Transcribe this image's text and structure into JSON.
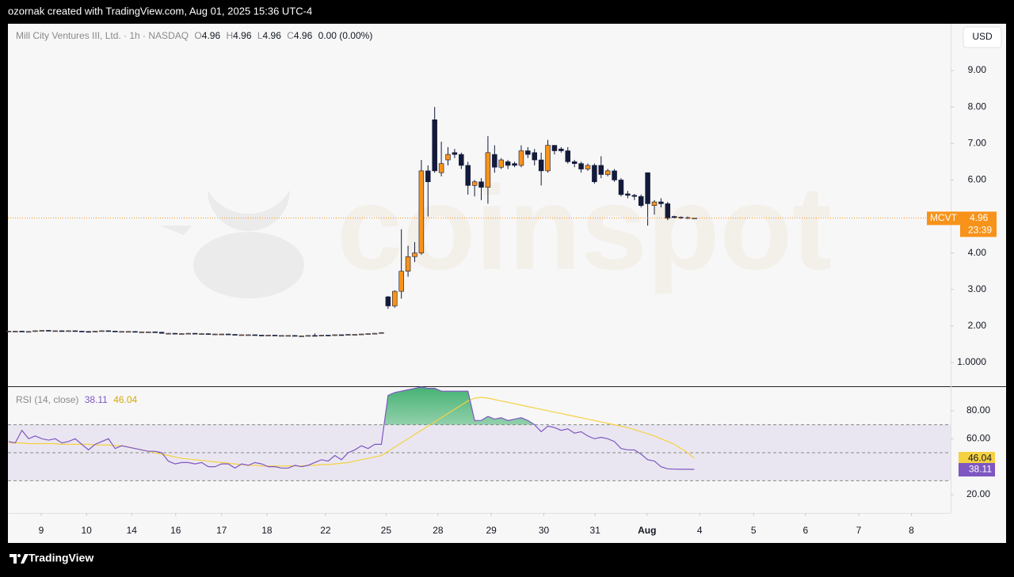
{
  "header": {
    "credit": "ozornak created with TradingView.com, Aug 01, 2025 15:36 UTC-4"
  },
  "legend": {
    "symbol": "Mill City Ventures III, Ltd. · 1h · NASDAQ",
    "o": "O",
    "h": "H",
    "l": "L",
    "c": "C",
    "change": "0.00 (0.00%)"
  },
  "currency": "USD",
  "price_tag": {
    "ticker": "MCVT",
    "countdown": "23:39"
  },
  "rsi_legend": {
    "name": "RSI (14, close)"
  },
  "watermark": "coinspot",
  "footer": {
    "brand": "TradingView"
  },
  "chart_data": [
    {
      "type": "candlestick",
      "up_color": "#f7931a",
      "down_color": "#131a3a",
      "last_line_color": "#f7931a",
      "x": [
        0,
        1,
        2,
        3,
        4,
        5,
        6,
        7,
        8,
        9,
        10,
        11,
        12,
        13,
        14,
        15,
        16,
        17,
        18,
        19,
        20,
        21,
        22,
        23,
        24,
        25,
        26,
        27,
        28,
        29,
        30,
        31,
        32,
        33,
        34,
        35,
        36,
        37,
        38,
        39,
        40,
        41,
        42,
        43,
        44,
        45,
        46,
        47,
        48,
        49,
        50,
        51,
        52,
        53,
        54,
        55,
        56,
        57,
        58,
        59,
        60,
        61,
        62,
        63,
        64,
        65,
        66,
        67,
        68,
        69,
        70,
        71,
        72,
        73,
        74,
        75,
        76,
        77,
        78,
        79,
        80,
        81,
        82,
        83,
        84,
        85,
        86,
        87,
        88,
        89,
        90,
        91,
        92,
        93,
        94,
        95,
        96,
        97,
        98,
        99,
        100,
        101,
        102,
        103
      ],
      "open": [
        1.86,
        1.86,
        1.86,
        1.85,
        1.85,
        1.87,
        1.88,
        1.87,
        1.87,
        1.86,
        1.87,
        1.86,
        1.85,
        1.84,
        1.86,
        1.87,
        1.86,
        1.85,
        1.85,
        1.85,
        1.84,
        1.84,
        1.84,
        1.83,
        1.8,
        1.8,
        1.79,
        1.79,
        1.8,
        1.79,
        1.79,
        1.78,
        1.78,
        1.78,
        1.77,
        1.76,
        1.76,
        1.76,
        1.75,
        1.74,
        1.75,
        1.74,
        1.74,
        1.74,
        1.73,
        1.73,
        1.74,
        1.73,
        1.75,
        1.74,
        1.76,
        1.75,
        1.77,
        1.77,
        1.78,
        1.79,
        1.8,
        2.8,
        2.55,
        2.95,
        3.5,
        3.9,
        4.0,
        6.25,
        7.65,
        6.2,
        6.55,
        6.75,
        6.7,
        6.4,
        5.85,
        5.95,
        5.8,
        6.7,
        6.35,
        6.5,
        6.45,
        6.4,
        6.8,
        6.75,
        6.55,
        6.25,
        6.95,
        6.85,
        6.8,
        6.5,
        6.45,
        6.3,
        6.4,
        6.4,
        6.15,
        6.25,
        6.0,
        5.62,
        5.58,
        5.55,
        6.2,
        5.3,
        5.4,
        5.35,
        5.0,
        4.98,
        4.95,
        4.96
      ],
      "high": [
        1.87,
        1.87,
        1.87,
        1.86,
        1.88,
        1.89,
        1.89,
        1.88,
        1.88,
        1.88,
        1.88,
        1.87,
        1.86,
        1.87,
        1.88,
        1.88,
        1.87,
        1.86,
        1.86,
        1.86,
        1.85,
        1.85,
        1.85,
        1.84,
        1.81,
        1.81,
        1.8,
        1.81,
        1.81,
        1.8,
        1.8,
        1.79,
        1.79,
        1.79,
        1.78,
        1.77,
        1.77,
        1.77,
        1.76,
        1.76,
        1.76,
        1.75,
        1.75,
        1.75,
        1.74,
        1.75,
        1.8,
        1.76,
        1.76,
        1.77,
        1.77,
        1.78,
        1.78,
        1.79,
        1.8,
        1.81,
        1.83,
        2.82,
        2.98,
        4.65,
        4.2,
        4.3,
        6.55,
        6.4,
        8.0,
        7.05,
        6.9,
        6.85,
        6.75,
        6.5,
        6.0,
        6.05,
        7.2,
        6.95,
        6.6,
        6.55,
        6.5,
        6.95,
        6.9,
        6.85,
        6.75,
        7.1,
        6.95,
        6.9,
        6.9,
        6.55,
        6.5,
        6.45,
        6.45,
        6.65,
        6.3,
        6.3,
        6.05,
        5.7,
        5.62,
        5.6,
        6.2,
        5.45,
        5.5,
        5.4,
        5.02,
        5.0,
        5.0,
        4.96
      ],
      "low": [
        1.85,
        1.85,
        1.84,
        1.84,
        1.84,
        1.86,
        1.86,
        1.86,
        1.85,
        1.85,
        1.85,
        1.84,
        1.83,
        1.83,
        1.85,
        1.85,
        1.84,
        1.84,
        1.84,
        1.83,
        1.83,
        1.83,
        1.82,
        1.79,
        1.79,
        1.78,
        1.78,
        1.78,
        1.78,
        1.78,
        1.77,
        1.77,
        1.77,
        1.76,
        1.75,
        1.75,
        1.75,
        1.74,
        1.73,
        1.73,
        1.73,
        1.73,
        1.73,
        1.72,
        1.72,
        1.72,
        1.72,
        1.72,
        1.73,
        1.73,
        1.74,
        1.74,
        1.76,
        1.76,
        1.77,
        1.78,
        1.79,
        2.47,
        2.5,
        2.75,
        3.35,
        3.75,
        3.95,
        5.0,
        6.2,
        6.1,
        6.4,
        6.6,
        6.3,
        5.6,
        5.55,
        5.45,
        5.35,
        6.2,
        6.3,
        6.3,
        6.35,
        6.35,
        6.6,
        6.4,
        5.85,
        6.2,
        6.7,
        6.75,
        6.45,
        6.35,
        6.2,
        6.25,
        5.9,
        6.05,
        6.1,
        5.95,
        5.55,
        5.5,
        5.45,
        5.25,
        4.75,
        5.05,
        5.25,
        4.9,
        4.95,
        4.93,
        4.93,
        4.96
      ],
      "close": [
        1.86,
        1.86,
        1.85,
        1.85,
        1.87,
        1.88,
        1.87,
        1.87,
        1.86,
        1.87,
        1.86,
        1.85,
        1.84,
        1.86,
        1.87,
        1.86,
        1.85,
        1.85,
        1.85,
        1.84,
        1.84,
        1.84,
        1.83,
        1.8,
        1.8,
        1.79,
        1.79,
        1.8,
        1.79,
        1.79,
        1.78,
        1.78,
        1.78,
        1.77,
        1.76,
        1.76,
        1.76,
        1.75,
        1.74,
        1.75,
        1.74,
        1.74,
        1.74,
        1.73,
        1.73,
        1.74,
        1.73,
        1.75,
        1.74,
        1.76,
        1.75,
        1.77,
        1.77,
        1.78,
        1.79,
        1.8,
        1.82,
        2.55,
        2.95,
        3.5,
        3.9,
        4.0,
        6.25,
        5.95,
        6.25,
        6.45,
        6.7,
        6.7,
        6.4,
        5.85,
        5.95,
        5.8,
        6.75,
        6.35,
        6.55,
        6.4,
        6.4,
        6.8,
        6.7,
        6.55,
        6.25,
        6.95,
        6.8,
        6.8,
        6.5,
        6.45,
        6.3,
        6.4,
        5.95,
        6.15,
        6.25,
        6.0,
        5.6,
        5.58,
        5.55,
        5.3,
        5.35,
        5.4,
        5.35,
        4.95,
        4.97,
        4.96,
        4.97,
        4.96
      ],
      "xlim": [
        -0.1,
        141.5
      ],
      "ylim": [
        0.35,
        10.28
      ],
      "yticks": [
        {
          "value": 1,
          "label": "1.0000"
        },
        {
          "value": 2,
          "label": "2.00"
        },
        {
          "value": 3,
          "label": "3.00"
        },
        {
          "value": 4,
          "label": "4.00"
        },
        {
          "value": 6,
          "label": "6.00"
        },
        {
          "value": 7,
          "label": "7.00"
        },
        {
          "value": 8,
          "label": "8.00"
        },
        {
          "value": 9,
          "label": "9.00"
        }
      ]
    },
    {
      "type": "line",
      "x": [
        0,
        1,
        2,
        3,
        4,
        5,
        6,
        7,
        8,
        9,
        10,
        11,
        12,
        13,
        14,
        15,
        16,
        17,
        18,
        19,
        20,
        21,
        22,
        23,
        24,
        25,
        26,
        27,
        28,
        29,
        30,
        31,
        32,
        33,
        34,
        35,
        36,
        37,
        38,
        39,
        40,
        41,
        42,
        43,
        44,
        45,
        46,
        47,
        48,
        49,
        50,
        51,
        52,
        53,
        54,
        55,
        56,
        57,
        58,
        59,
        60,
        61,
        62,
        63,
        64,
        65,
        66,
        67,
        68,
        69,
        70,
        71,
        72,
        73,
        74,
        75,
        76,
        77,
        78,
        79,
        80,
        81,
        82,
        83,
        84,
        85,
        86,
        87,
        88,
        89,
        90,
        91,
        92,
        93,
        94,
        95,
        96,
        97,
        98,
        99,
        100,
        101,
        102,
        103
      ],
      "series": [
        {
          "name": "RSI",
          "color": "#7e57c2",
          "values": [
            58,
            57,
            66,
            60,
            62,
            60,
            59,
            60,
            57,
            58,
            60,
            56,
            52,
            56,
            58,
            60,
            53,
            55,
            54,
            53,
            52,
            51,
            51,
            50,
            44,
            42,
            43,
            43,
            42,
            43,
            40,
            40,
            42,
            42,
            39,
            42,
            41,
            43,
            42,
            40,
            40,
            39,
            39,
            41,
            40,
            41,
            43,
            45,
            44,
            48,
            45,
            50,
            52,
            55,
            53,
            56,
            56,
            91,
            93,
            94,
            95,
            96,
            97,
            96,
            96,
            94,
            94,
            94,
            94,
            94,
            73,
            73,
            76,
            74,
            75,
            73,
            74,
            75,
            73,
            70,
            65,
            69,
            68,
            66,
            67,
            64,
            65,
            62,
            60,
            61,
            60,
            58,
            53,
            52,
            52,
            49,
            45,
            44,
            40,
            38.5,
            38.3,
            38.2,
            38.2,
            38.11
          ]
        },
        {
          "name": "RSI-based MA",
          "color": "#f5d142",
          "values": [
            57,
            57,
            57,
            56.5,
            56.5,
            56.5,
            56.5,
            56.5,
            56,
            56,
            56,
            56,
            56,
            55.5,
            55.5,
            55.5,
            55,
            55,
            54,
            53,
            52,
            51,
            50,
            49,
            48,
            47,
            46,
            45.5,
            45,
            44.5,
            44,
            43.5,
            43,
            42.5,
            42,
            41.5,
            41,
            41,
            40.5,
            40.5,
            40.5,
            40.5,
            40.5,
            40.5,
            40.5,
            41,
            41,
            41.5,
            41.5,
            42,
            42.5,
            43,
            44,
            45,
            46,
            47,
            48,
            51,
            54,
            57,
            60,
            63,
            66,
            69,
            72,
            75,
            78,
            81,
            84,
            87,
            89,
            89.5,
            89,
            88,
            87,
            86,
            85,
            84,
            83,
            82,
            81,
            80,
            79,
            78,
            77,
            76,
            75,
            74,
            73,
            72,
            71,
            70,
            69,
            68,
            66.5,
            65,
            63.5,
            62,
            60,
            58,
            56,
            53,
            50,
            46.04
          ]
        }
      ],
      "levels": [
        30,
        50,
        70
      ],
      "band_color": "#7e57c2",
      "overbought_color": "#26a65b",
      "xlim": [
        -0.1,
        141.5
      ],
      "ylim": [
        7,
        97.5
      ],
      "yticks": [
        {
          "value": 20,
          "label": "20.00"
        },
        {
          "value": 60,
          "label": "60.00"
        },
        {
          "value": 80,
          "label": "80.00"
        }
      ],
      "xticks": [
        {
          "value": 4.9,
          "label": "9"
        },
        {
          "value": 11.7,
          "label": "10"
        },
        {
          "value": 18.5,
          "label": "14"
        },
        {
          "value": 25.1,
          "label": "16"
        },
        {
          "value": 32.0,
          "label": "17"
        },
        {
          "value": 38.8,
          "label": "18"
        },
        {
          "value": 47.6,
          "label": "22"
        },
        {
          "value": 56.7,
          "label": "25"
        },
        {
          "value": 64.5,
          "label": "28"
        },
        {
          "value": 72.5,
          "label": "29"
        },
        {
          "value": 80.4,
          "label": "30"
        },
        {
          "value": 88.1,
          "label": "31"
        },
        {
          "value": 95.9,
          "label": "Aug"
        },
        {
          "value": 103.8,
          "label": "4"
        },
        {
          "value": 111.9,
          "label": "5"
        },
        {
          "value": 119.7,
          "label": "6"
        },
        {
          "value": 127.7,
          "label": "7"
        },
        {
          "value": 135.6,
          "label": "8"
        }
      ]
    }
  ]
}
